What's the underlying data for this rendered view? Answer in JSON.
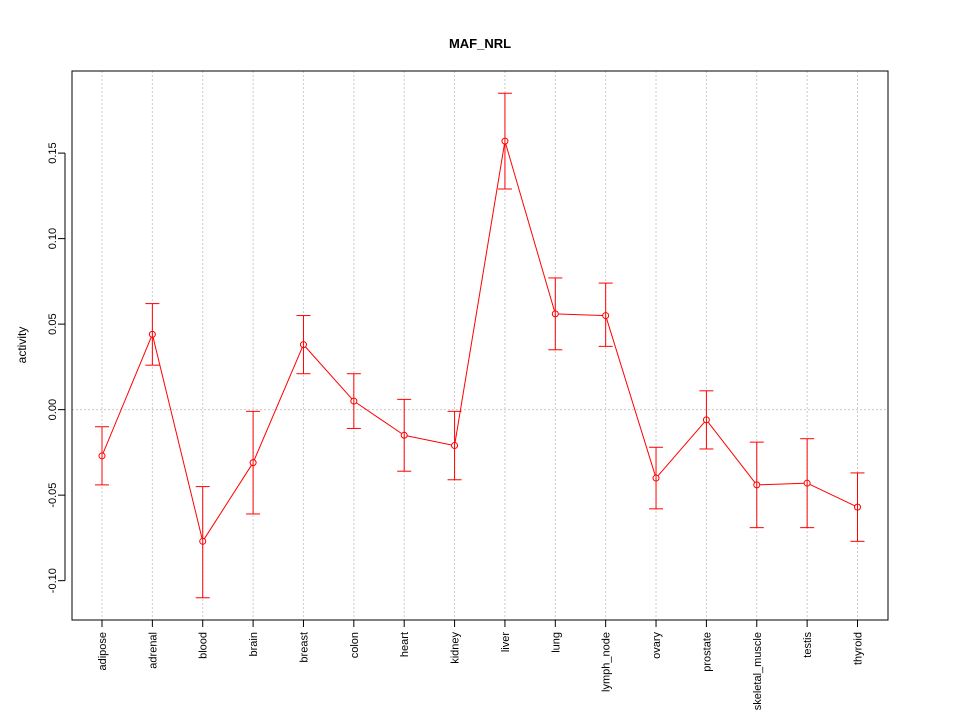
{
  "chart_data": {
    "type": "line",
    "title": "MAF_NRL",
    "xlabel": "",
    "ylabel": "activity",
    "categories": [
      "adipose",
      "adrenal",
      "blood",
      "brain",
      "breast",
      "colon",
      "heart",
      "kidney",
      "liver",
      "lung",
      "lymph_node",
      "ovary",
      "prostate",
      "skeletal_muscle",
      "testis",
      "thyroid"
    ],
    "values": [
      -0.027,
      0.044,
      -0.077,
      -0.031,
      0.038,
      0.005,
      -0.015,
      -0.021,
      0.157,
      0.056,
      0.055,
      -0.04,
      -0.006,
      -0.044,
      -0.043,
      -0.057
    ],
    "error_low": [
      -0.044,
      0.026,
      -0.11,
      -0.061,
      0.021,
      -0.011,
      -0.036,
      -0.041,
      0.129,
      0.035,
      0.037,
      -0.058,
      -0.023,
      -0.069,
      -0.069,
      -0.077
    ],
    "error_high": [
      -0.01,
      0.062,
      -0.045,
      -0.001,
      0.055,
      0.021,
      0.006,
      -0.001,
      0.185,
      0.077,
      0.074,
      -0.022,
      0.011,
      -0.019,
      -0.017,
      -0.037
    ],
    "yticks": [
      -0.1,
      -0.05,
      0.0,
      0.05,
      0.1,
      0.15
    ],
    "ytick_labels": [
      "-0.10",
      "-0.05",
      "0.00",
      "0.05",
      "0.10",
      "0.15"
    ],
    "ylim": [
      -0.123,
      0.198
    ],
    "grid": true,
    "colors": {
      "series": "#ff0000",
      "grid": "#cccccc",
      "axis": "#000000"
    }
  }
}
